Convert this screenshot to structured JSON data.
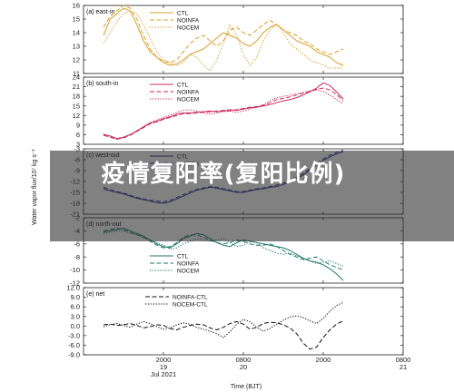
{
  "chart_data": {
    "type": "line",
    "ylabel": "Water vapor flux/10⁷ kg s⁻¹",
    "xlabel": "Time (BJT)",
    "x": [
      0,
      1,
      2,
      3,
      4,
      5,
      6,
      7,
      8,
      9,
      10,
      11,
      12,
      13,
      14,
      15,
      16,
      17,
      18,
      19,
      20,
      21,
      22,
      23,
      24,
      25,
      26,
      27,
      28,
      29,
      30,
      31,
      32,
      33,
      34,
      35,
      36
    ],
    "xtick_labels": [
      {
        "at": 9,
        "lines": [
          "2000",
          "19",
          "Jul 2021"
        ]
      },
      {
        "at": 21,
        "lines": [
          "0800",
          "20"
        ]
      },
      {
        "at": 33,
        "lines": [
          "2000"
        ]
      },
      {
        "at": 45,
        "lines": [
          "0800",
          "21"
        ]
      }
    ],
    "xlim": [
      -3,
      45
    ],
    "panels": [
      {
        "label": "(a) east-in",
        "color": "#d9a02a",
        "ylim": [
          11,
          16
        ],
        "yticks": [
          "16",
          "15",
          "14",
          "13",
          "12",
          "11"
        ],
        "ytick_values": [
          16,
          15,
          14,
          13,
          12,
          11
        ],
        "legend": [
          "CTL",
          "NOINFA",
          "NOCEM"
        ],
        "series": [
          {
            "name": "CTL",
            "dash": "solid",
            "values": [
              13.8,
              15.0,
              15.4,
              15.8,
              15.6,
              14.6,
              13.4,
              12.6,
              12.2,
              11.8,
              11.6,
              11.7,
              12.0,
              12.4,
              12.6,
              12.8,
              13.2,
              13.6,
              14.0,
              13.8,
              13.6,
              13.2,
              13.0,
              13.4,
              14.0,
              14.4,
              14.6,
              14.2,
              13.8,
              13.4,
              13.2,
              13.0,
              12.6,
              12.4,
              12.2,
              11.8,
              11.6
            ]
          },
          {
            "name": "NOINFA",
            "dash": "dash",
            "values": [
              14.4,
              15.2,
              15.6,
              16.0,
              15.8,
              15.0,
              13.8,
              12.8,
              12.2,
              11.9,
              11.8,
              12.0,
              12.6,
              13.2,
              13.6,
              13.8,
              13.4,
              13.0,
              13.4,
              14.2,
              14.4,
              14.0,
              13.8,
              14.2,
              14.6,
              14.9,
              14.6,
              14.2,
              14.0,
              13.8,
              13.4,
              13.2,
              12.8,
              12.6,
              12.4,
              12.6,
              12.8
            ]
          },
          {
            "name": "NOCEM",
            "dash": "dot",
            "values": [
              13.2,
              14.0,
              14.8,
              15.4,
              15.6,
              15.4,
              14.6,
              13.6,
              12.6,
              12.0,
              11.8,
              11.6,
              11.8,
              12.4,
              12.2,
              11.6,
              11.2,
              12.0,
              13.2,
              14.6,
              13.8,
              12.4,
              11.6,
              12.2,
              13.4,
              14.2,
              14.6,
              14.0,
              13.2,
              12.8,
              12.4,
              12.0,
              11.8,
              11.6,
              11.4,
              11.4,
              11.4
            ]
          }
        ]
      },
      {
        "label": "(b) south-in",
        "color": "#cc2a5c",
        "ylim": [
          3,
          24
        ],
        "yticks": [
          "24",
          "21",
          "18",
          "15",
          "12",
          "9",
          "6",
          "3"
        ],
        "ytick_values": [
          24,
          21,
          18,
          15,
          12,
          9,
          6,
          3
        ],
        "legend": [
          "CTL",
          "NOINFA",
          "NOCEM"
        ],
        "series": [
          {
            "name": "CTL",
            "dash": "solid",
            "values": [
              6.0,
              5.6,
              4.8,
              5.2,
              6.0,
              7.2,
              8.4,
              9.6,
              10.2,
              11.0,
              11.6,
              12.4,
              12.8,
              12.8,
              13.0,
              13.2,
              13.4,
              13.2,
              13.4,
              13.8,
              13.6,
              14.0,
              14.4,
              14.6,
              15.0,
              15.4,
              16.0,
              16.6,
              17.0,
              17.6,
              18.4,
              19.4,
              20.6,
              22.2,
              21.4,
              19.4,
              17.2
            ]
          },
          {
            "name": "NOINFA",
            "dash": "dash",
            "values": [
              5.8,
              5.2,
              4.6,
              5.0,
              5.8,
              7.0,
              8.2,
              9.4,
              10.0,
              10.8,
              11.4,
              12.0,
              12.6,
              12.6,
              12.8,
              13.0,
              13.2,
              13.4,
              13.6,
              13.4,
              13.8,
              14.2,
              14.6,
              14.8,
              15.2,
              16.0,
              17.0,
              17.4,
              17.8,
              18.4,
              19.0,
              19.6,
              20.2,
              20.6,
              20.0,
              18.6,
              16.6
            ]
          },
          {
            "name": "NOCEM",
            "dash": "dot",
            "values": [
              6.2,
              5.4,
              4.6,
              5.2,
              6.0,
              7.2,
              8.6,
              9.8,
              10.6,
              11.4,
              12.2,
              13.0,
              13.6,
              13.8,
              13.4,
              12.8,
              12.4,
              12.8,
              13.2,
              13.4,
              13.0,
              13.4,
              14.0,
              14.6,
              15.4,
              16.6,
              17.6,
              18.0,
              18.4,
              18.8,
              19.2,
              19.6,
              20.0,
              19.6,
              18.4,
              17.0,
              15.6
            ]
          }
        ]
      },
      {
        "label": "(c) west-out",
        "color": "#2a2a8a",
        "ylim": [
          -21,
          -3
        ],
        "yticks": [
          "-3",
          "-6",
          "-9",
          "-12",
          "-15",
          "-18",
          "-21"
        ],
        "ytick_values": [
          -3,
          -6,
          -9,
          -12,
          -15,
          -18,
          -21
        ],
        "legend": [
          "CTL",
          "NOINFA"
        ],
        "series": [
          {
            "name": "CTL",
            "dash": "solid",
            "values": [
              -14.0,
              -14.6,
              -15.0,
              -15.4,
              -16.0,
              -16.6,
              -17.0,
              -17.4,
              -17.8,
              -18.0,
              -17.6,
              -16.8,
              -16.0,
              -15.2,
              -14.4,
              -14.0,
              -13.6,
              -13.8,
              -14.2,
              -14.6,
              -15.0,
              -15.0,
              -14.6,
              -14.2,
              -14.0,
              -13.6,
              -13.4,
              -12.8,
              -12.2,
              -11.2,
              -10.2,
              -8.8,
              -7.4,
              -6.2,
              -5.2,
              -4.4,
              -3.8
            ]
          },
          {
            "name": "NOINFA",
            "dash": "dash",
            "values": [
              -13.6,
              -14.2,
              -14.8,
              -15.2,
              -15.8,
              -16.4,
              -16.8,
              -17.2,
              -17.4,
              -17.6,
              -17.2,
              -16.4,
              -15.6,
              -14.8,
              -14.2,
              -13.8,
              -13.4,
              -13.6,
              -14.0,
              -14.4,
              -14.8,
              -14.8,
              -14.4,
              -14.0,
              -13.8,
              -13.4,
              -13.0,
              -12.4,
              -11.8,
              -10.8,
              -9.8,
              -8.4,
              -7.0,
              -5.8,
              -4.8,
              -4.0,
              -3.4
            ]
          }
        ]
      },
      {
        "label": "(d) north-out",
        "color": "#1f7a66",
        "ylim": [
          -12,
          -2
        ],
        "yticks": [
          "-2",
          "-4",
          "-6",
          "-8",
          "-10",
          "-12"
        ],
        "ytick_values": [
          -2,
          -4,
          -6,
          -8,
          -10,
          -12
        ],
        "legend": [
          "CTL",
          "NOINFA",
          "NOCEM"
        ],
        "series": [
          {
            "name": "CTL",
            "dash": "solid",
            "values": [
              -4.2,
              -4.0,
              -3.8,
              -3.6,
              -4.0,
              -4.4,
              -4.8,
              -5.4,
              -6.0,
              -6.4,
              -6.6,
              -6.0,
              -5.2,
              -4.8,
              -4.4,
              -4.6,
              -5.2,
              -5.8,
              -6.2,
              -6.4,
              -5.8,
              -5.4,
              -5.6,
              -5.8,
              -6.0,
              -6.2,
              -6.4,
              -6.6,
              -7.0,
              -7.6,
              -8.2,
              -8.6,
              -8.8,
              -9.2,
              -9.8,
              -10.6,
              -11.6
            ]
          },
          {
            "name": "NOINFA",
            "dash": "dash",
            "values": [
              -4.0,
              -3.8,
              -3.6,
              -3.8,
              -4.2,
              -4.6,
              -5.0,
              -5.6,
              -6.2,
              -6.6,
              -6.4,
              -5.8,
              -5.0,
              -4.6,
              -4.6,
              -5.0,
              -5.4,
              -5.8,
              -6.0,
              -5.8,
              -5.4,
              -5.6,
              -6.0,
              -6.2,
              -6.2,
              -6.0,
              -6.4,
              -7.0,
              -7.6,
              -8.0,
              -8.4,
              -8.2,
              -8.0,
              -8.6,
              -9.2,
              -9.6,
              -10.0
            ]
          },
          {
            "name": "NOCEM",
            "dash": "dot",
            "values": [
              -4.4,
              -4.2,
              -4.0,
              -4.0,
              -4.4,
              -4.6,
              -5.0,
              -5.4,
              -5.8,
              -6.2,
              -6.8,
              -6.6,
              -6.0,
              -5.6,
              -5.2,
              -5.4,
              -5.6,
              -5.4,
              -5.2,
              -5.8,
              -6.4,
              -6.2,
              -5.6,
              -5.8,
              -6.6,
              -7.0,
              -7.4,
              -7.6,
              -7.4,
              -7.8,
              -8.2,
              -8.6,
              -9.0,
              -8.8,
              -8.6,
              -9.0,
              -9.4
            ]
          }
        ]
      },
      {
        "label": "(e) net",
        "color": "#111111",
        "ylim": [
          -9,
          12
        ],
        "yticks": [
          "12.0",
          "9.0",
          "6.0",
          "3.0",
          "0.0",
          "-3.0",
          "-6.0",
          "-9.0"
        ],
        "ytick_values": [
          12,
          9,
          6,
          3,
          0,
          -3,
          -6,
          -9
        ],
        "legend": [
          "NOINFA-CTL",
          "NOCEM-CTL"
        ],
        "series": [
          {
            "name": "NOINFA-CTL",
            "dash": "dash",
            "values": [
              0.4,
              0.6,
              0.2,
              0.4,
              0.8,
              0.2,
              -0.6,
              -0.2,
              0.4,
              0.2,
              -0.8,
              -1.2,
              -0.4,
              0.2,
              0.6,
              0.4,
              -0.6,
              -1.2,
              -0.4,
              0.8,
              1.4,
              0.6,
              -1.0,
              -0.4,
              0.8,
              1.2,
              1.0,
              0.4,
              -0.6,
              -2.4,
              -5.4,
              -7.2,
              -6.6,
              -3.6,
              -1.2,
              0.6,
              1.6
            ]
          },
          {
            "name": "NOCEM-CTL",
            "dash": "dot",
            "values": [
              -0.2,
              0.4,
              0.8,
              0.2,
              -0.4,
              0.6,
              1.4,
              0.8,
              -0.2,
              -1.0,
              -0.6,
              0.4,
              1.0,
              0.6,
              -0.4,
              -1.0,
              -1.6,
              -2.4,
              -3.6,
              -1.8,
              0.6,
              2.0,
              1.4,
              -0.4,
              -1.6,
              -0.8,
              0.6,
              1.8,
              2.8,
              3.2,
              2.6,
              1.6,
              0.8,
              2.4,
              4.6,
              6.4,
              7.4
            ]
          }
        ]
      }
    ]
  },
  "overlay": {
    "text": "疫情复阳率(复阳比例)"
  }
}
